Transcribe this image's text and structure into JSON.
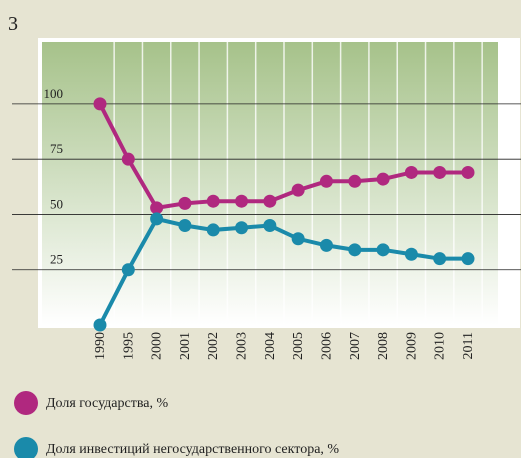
{
  "chart_data": {
    "type": "line",
    "title": "3",
    "categories": [
      "1990",
      "1995",
      "2000",
      "2001",
      "2002",
      "2003",
      "2004",
      "2005",
      "2006",
      "2007",
      "2008",
      "2009",
      "2010",
      "2011"
    ],
    "series": [
      {
        "name": "Доля государства, %",
        "color": "#b0287f",
        "values": [
          100,
          75,
          53,
          55,
          56,
          56,
          56,
          61,
          65,
          65,
          66,
          69,
          69,
          69
        ]
      },
      {
        "name": "Доля инвестиций негосударственного сектора, %",
        "color": "#1a8aaa",
        "values": [
          0,
          25,
          48,
          45,
          43,
          44,
          45,
          39,
          36,
          34,
          34,
          32,
          30,
          30
        ]
      }
    ],
    "ylim": [
      0,
      128
    ],
    "yticks": [
      25,
      50,
      75,
      100
    ],
    "grid": true
  }
}
